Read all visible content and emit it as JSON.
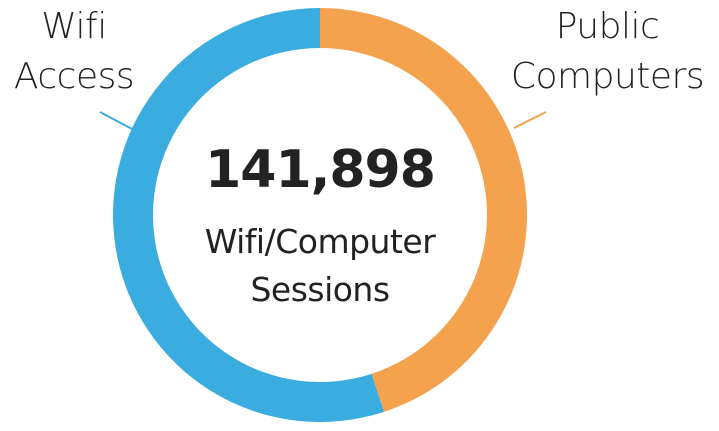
{
  "chart_data": {
    "type": "pie",
    "donut": true,
    "categories": [
      "Public Computers",
      "Wifi Access"
    ],
    "values": [
      45,
      55
    ],
    "colors": [
      "#f4a24d",
      "#3aace0"
    ],
    "center_value": "141,898",
    "center_label": "Wifi/Computer Sessions"
  }
}
